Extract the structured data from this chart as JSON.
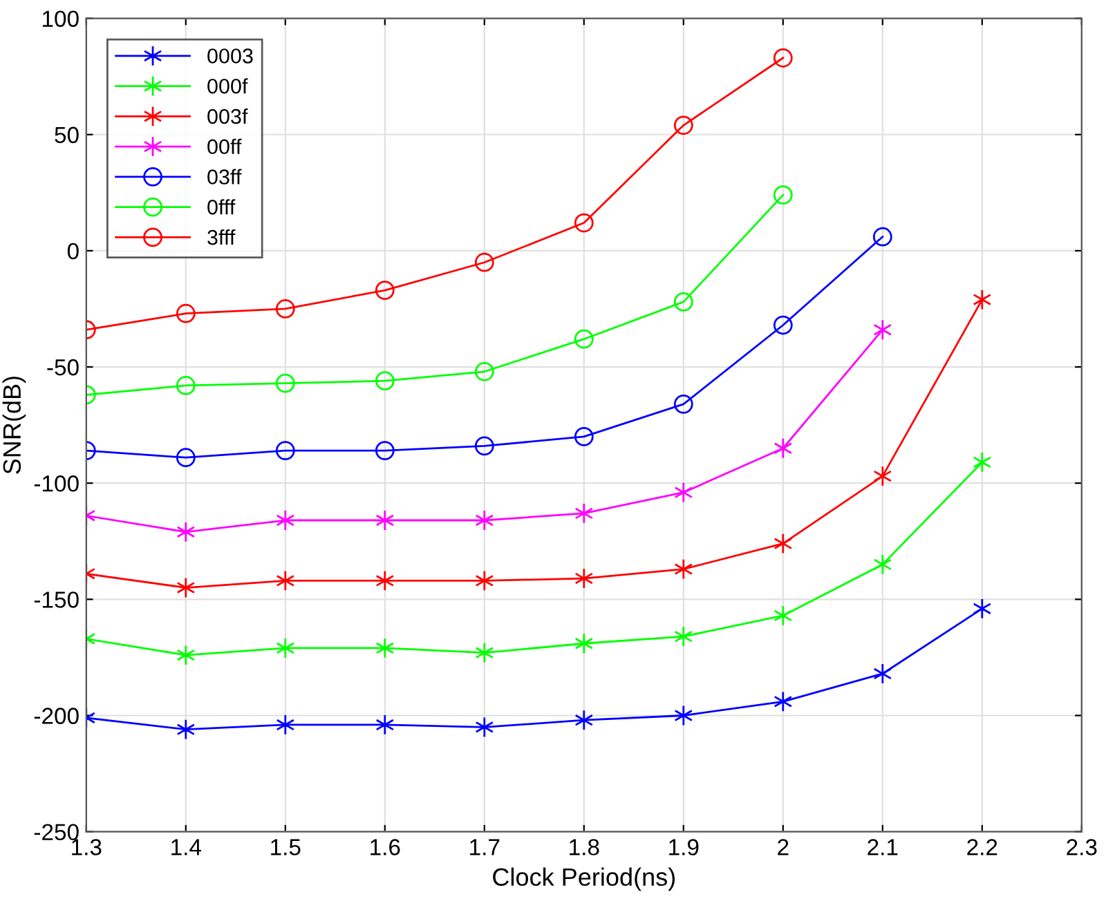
{
  "chart_data": {
    "type": "line",
    "xlabel": "Clock Period(ns)",
    "ylabel": "SNR(dB)",
    "xlim": [
      1.3,
      2.3
    ],
    "ylim": [
      -250,
      100
    ],
    "xticks": [
      1.3,
      1.4,
      1.5,
      1.6,
      1.7,
      1.8,
      1.9,
      {
        "value": 2,
        "label": "2"
      },
      2.1,
      2.2,
      2.3
    ],
    "yticks": [
      -250,
      -200,
      -150,
      -100,
      -50,
      0,
      50,
      100
    ],
    "grid": true,
    "legend": "top left",
    "series": [
      {
        "name": "0003",
        "color": "#0000ff",
        "marker": "cross",
        "x": [
          1.3,
          1.4,
          1.5,
          1.6,
          1.7,
          1.8,
          1.9,
          2.0,
          2.1,
          2.2
        ],
        "values": [
          -201,
          -206,
          -204,
          -204,
          -205,
          -202,
          -200,
          -194,
          -182,
          -154
        ]
      },
      {
        "name": "000f",
        "color": "#00ff00",
        "marker": "cross",
        "x": [
          1.3,
          1.4,
          1.5,
          1.6,
          1.7,
          1.8,
          1.9,
          2.0,
          2.1,
          2.2
        ],
        "values": [
          -167,
          -174,
          -171,
          -171,
          -173,
          -169,
          -166,
          -157,
          -135,
          -91
        ]
      },
      {
        "name": "003f",
        "color": "#ff0000",
        "marker": "cross",
        "x": [
          1.3,
          1.4,
          1.5,
          1.6,
          1.7,
          1.8,
          1.9,
          2.0,
          2.1,
          2.2
        ],
        "values": [
          -139,
          -145,
          -142,
          -142,
          -142,
          -141,
          -137,
          -126,
          -97,
          -21
        ]
      },
      {
        "name": "00ff",
        "color": "#ff00ff",
        "marker": "cross",
        "x": [
          1.3,
          1.4,
          1.5,
          1.6,
          1.7,
          1.8,
          1.9,
          2.0,
          2.1
        ],
        "values": [
          -114,
          -121,
          -116,
          -116,
          -116,
          -113,
          -104,
          -85,
          -34
        ]
      },
      {
        "name": "03ff",
        "color": "#0000ff",
        "marker": "circle",
        "x": [
          1.3,
          1.4,
          1.5,
          1.6,
          1.7,
          1.8,
          1.9,
          2.0,
          2.1
        ],
        "values": [
          -86,
          -89,
          -86,
          -86,
          -84,
          -80,
          -66,
          -32,
          6
        ]
      },
      {
        "name": "0fff",
        "color": "#00ff00",
        "marker": "circle",
        "x": [
          1.3,
          1.4,
          1.5,
          1.6,
          1.7,
          1.8,
          1.9,
          2.0
        ],
        "values": [
          -62,
          -58,
          -57,
          -56,
          -52,
          -38,
          -22,
          24
        ]
      },
      {
        "name": "3fff",
        "color": "#ff0000",
        "marker": "circle",
        "x": [
          1.3,
          1.4,
          1.5,
          1.6,
          1.7,
          1.8,
          1.9,
          2.0
        ],
        "values": [
          -34,
          -27,
          -25,
          -17,
          -5,
          12,
          54,
          83
        ]
      }
    ]
  }
}
